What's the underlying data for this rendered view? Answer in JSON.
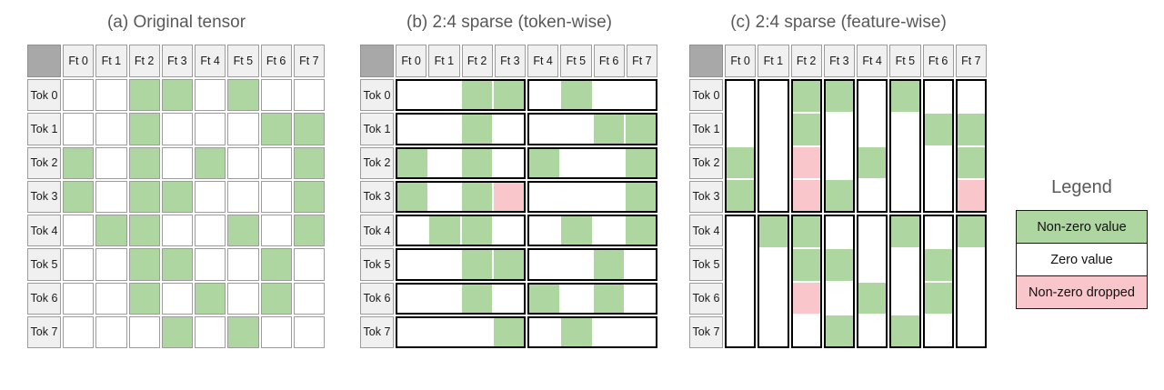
{
  "colors": {
    "nonzero": "#aed6a1",
    "zero": "#ffffff",
    "dropped": "#f9c7cb",
    "header_bg": "#f0f0f0",
    "corner_bg": "#a8a8a8",
    "title_color": "#595959"
  },
  "grids": [
    {
      "title": "(a) Original tensor",
      "grouping": "none",
      "col_headers": [
        "Ft 0",
        "Ft 1",
        "Ft 2",
        "Ft 3",
        "Ft 4",
        "Ft 5",
        "Ft 6",
        "Ft 7"
      ],
      "row_headers": [
        "Tok 0",
        "Tok 1",
        "Tok 2",
        "Tok 3",
        "Tok 4",
        "Tok 5",
        "Tok 6",
        "Tok 7"
      ],
      "cells": [
        [
          "Z",
          "Z",
          "N",
          "N",
          "Z",
          "N",
          "Z",
          "Z"
        ],
        [
          "Z",
          "Z",
          "N",
          "Z",
          "Z",
          "Z",
          "N",
          "N"
        ],
        [
          "N",
          "Z",
          "N",
          "Z",
          "N",
          "Z",
          "Z",
          "N"
        ],
        [
          "N",
          "Z",
          "N",
          "N",
          "Z",
          "Z",
          "Z",
          "N"
        ],
        [
          "Z",
          "N",
          "N",
          "Z",
          "Z",
          "N",
          "Z",
          "N"
        ],
        [
          "Z",
          "Z",
          "N",
          "N",
          "Z",
          "Z",
          "N",
          "Z"
        ],
        [
          "Z",
          "Z",
          "N",
          "Z",
          "N",
          "Z",
          "N",
          "Z"
        ],
        [
          "Z",
          "Z",
          "Z",
          "N",
          "Z",
          "N",
          "Z",
          "Z"
        ]
      ]
    },
    {
      "title": "(b) 2:4 sparse (token-wise)",
      "grouping": "token",
      "col_headers": [
        "Ft 0",
        "Ft 1",
        "Ft 2",
        "Ft 3",
        "Ft 4",
        "Ft 5",
        "Ft 6",
        "Ft 7"
      ],
      "row_headers": [
        "Tok 0",
        "Tok 1",
        "Tok 2",
        "Tok 3",
        "Tok 4",
        "Tok 5",
        "Tok 6",
        "Tok 7"
      ],
      "cells": [
        [
          "Z",
          "Z",
          "N",
          "N",
          "Z",
          "N",
          "Z",
          "Z"
        ],
        [
          "Z",
          "Z",
          "N",
          "Z",
          "Z",
          "Z",
          "N",
          "N"
        ],
        [
          "N",
          "Z",
          "N",
          "Z",
          "N",
          "Z",
          "Z",
          "N"
        ],
        [
          "N",
          "Z",
          "N",
          "D",
          "Z",
          "Z",
          "Z",
          "N"
        ],
        [
          "Z",
          "N",
          "N",
          "Z",
          "Z",
          "N",
          "Z",
          "N"
        ],
        [
          "Z",
          "Z",
          "N",
          "N",
          "Z",
          "Z",
          "N",
          "Z"
        ],
        [
          "Z",
          "Z",
          "N",
          "Z",
          "N",
          "Z",
          "N",
          "Z"
        ],
        [
          "Z",
          "Z",
          "Z",
          "N",
          "Z",
          "N",
          "Z",
          "Z"
        ]
      ]
    },
    {
      "title": "(c) 2:4 sparse (feature-wise)",
      "grouping": "feature",
      "col_headers": [
        "Ft 0",
        "Ft 1",
        "Ft 2",
        "Ft 3",
        "Ft 4",
        "Ft 5",
        "Ft 6",
        "Ft 7"
      ],
      "row_headers": [
        "Tok 0",
        "Tok 1",
        "Tok 2",
        "Tok 3",
        "Tok 4",
        "Tok 5",
        "Tok 6",
        "Tok 7"
      ],
      "cells": [
        [
          "Z",
          "Z",
          "N",
          "N",
          "Z",
          "N",
          "Z",
          "Z"
        ],
        [
          "Z",
          "Z",
          "N",
          "Z",
          "Z",
          "Z",
          "N",
          "N"
        ],
        [
          "N",
          "Z",
          "D",
          "Z",
          "N",
          "Z",
          "Z",
          "N"
        ],
        [
          "N",
          "Z",
          "D",
          "N",
          "Z",
          "Z",
          "Z",
          "D"
        ],
        [
          "Z",
          "N",
          "N",
          "Z",
          "Z",
          "N",
          "Z",
          "N"
        ],
        [
          "Z",
          "Z",
          "N",
          "N",
          "Z",
          "Z",
          "N",
          "Z"
        ],
        [
          "Z",
          "Z",
          "D",
          "Z",
          "N",
          "Z",
          "N",
          "Z"
        ],
        [
          "Z",
          "Z",
          "Z",
          "N",
          "Z",
          "N",
          "Z",
          "Z"
        ]
      ]
    }
  ],
  "legend": {
    "title": "Legend",
    "items": [
      {
        "label": "Non-zero value",
        "type": "nonzero"
      },
      {
        "label": "Zero value",
        "type": "zero"
      },
      {
        "label": "Non-zero dropped",
        "type": "dropped"
      }
    ]
  }
}
